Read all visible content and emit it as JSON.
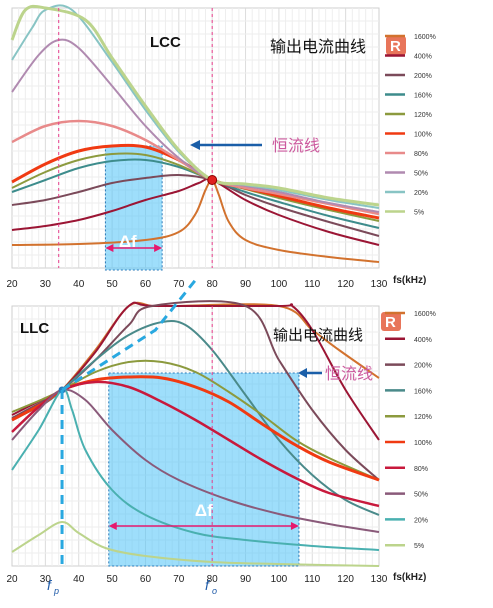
{
  "chart_data": [
    {
      "type": "line",
      "title": "LCC",
      "subtitle": "输出电流曲线",
      "badge": "R",
      "annotation_const": "恒流线",
      "annotation_delta": "Δf",
      "xlabel": "fs(kHz)",
      "x_ticks": [
        "20",
        "30",
        "40",
        "50",
        "60",
        "70",
        "80",
        "90",
        "100",
        "110",
        "120",
        "130"
      ],
      "xlim": [
        20,
        130
      ],
      "grid": true,
      "legend_position": "right",
      "shaded_region": {
        "x0": 48,
        "x1": 65
      },
      "marker_x": 34,
      "resonance_x": 80,
      "series": [
        {
          "name": "1600%",
          "color": "#d2722e"
        },
        {
          "name": "400%",
          "color": "#9b1534"
        },
        {
          "name": "200%",
          "color": "#7b4a5a"
        },
        {
          "name": "160%",
          "color": "#3d8c8c"
        },
        {
          "name": "120%",
          "color": "#8c9a3e"
        },
        {
          "name": "100%",
          "color": "#f03a12"
        },
        {
          "name": "80%",
          "color": "#e88a8a"
        },
        {
          "name": "50%",
          "color": "#b08ab0"
        },
        {
          "name": "20%",
          "color": "#88c4c4"
        },
        {
          "name": "5%",
          "color": "#bcd48c"
        }
      ]
    },
    {
      "type": "line",
      "title": "LLC",
      "subtitle": "输出电流曲线",
      "badge": "R",
      "annotation_const": "恒流线",
      "annotation_delta": "Δf",
      "xlabel": "fs(kHz)",
      "x_ticks": [
        "20",
        "30",
        "40",
        "50",
        "60",
        "70",
        "80",
        "90",
        "100",
        "110",
        "120",
        "130"
      ],
      "xlim": [
        20,
        130
      ],
      "grid": true,
      "legend_position": "right",
      "shaded_region": {
        "x0": 49,
        "x1": 106
      },
      "marker_x": 35,
      "resonance_x": 80,
      "fp_label": "f",
      "fp_sub": "p",
      "fo_label": "f",
      "fo_sub": "o",
      "series": [
        {
          "name": "1600%",
          "color": "#d2722e"
        },
        {
          "name": "400%",
          "color": "#9b1534"
        },
        {
          "name": "200%",
          "color": "#7b4a5a"
        },
        {
          "name": "160%",
          "color": "#4a8a8a"
        },
        {
          "name": "120%",
          "color": "#8c9a3e"
        },
        {
          "name": "100%",
          "color": "#f03a12"
        },
        {
          "name": "80%",
          "color": "#c8193c"
        },
        {
          "name": "50%",
          "color": "#8a5a7a"
        },
        {
          "name": "20%",
          "color": "#4ab0b0"
        },
        {
          "name": "5%",
          "color": "#bcd48c"
        }
      ]
    }
  ]
}
